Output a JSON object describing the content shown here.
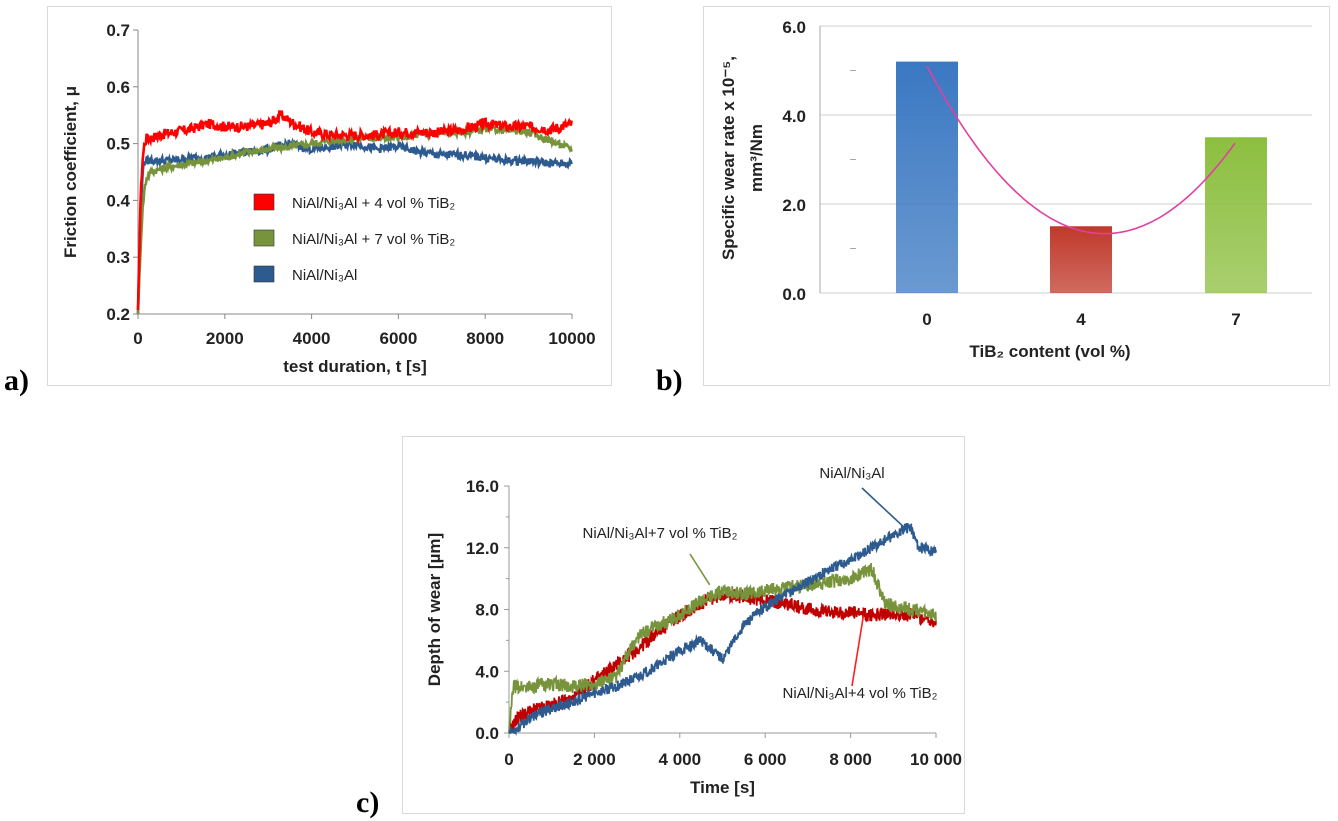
{
  "panel_labels": {
    "a": "a)",
    "b": "b)",
    "c": "c)"
  },
  "chart_data": [
    {
      "type": "line",
      "panel": "a",
      "xlabel": "test duration, t [s]",
      "ylabel": "Friction coefficient, μ",
      "xlim": [
        0,
        10000
      ],
      "ylim": [
        0.2,
        0.7
      ],
      "xticks": [
        "0",
        "2000",
        "4000",
        "6000",
        "8000",
        "10000"
      ],
      "yticks": [
        "0.2",
        "0.3",
        "0.4",
        "0.5",
        "0.6",
        "0.7"
      ],
      "grid": false,
      "legend": "center-right",
      "series": [
        {
          "name": "NiAl/Ni₃Al + 4 vol % TiB₂",
          "color": "#ff0000",
          "x": [
            0,
            50,
            100,
            150,
            200,
            300,
            500,
            800,
            1200,
            1600,
            2000,
            2500,
            3000,
            3300,
            3600,
            4000,
            4500,
            5000,
            5500,
            6000,
            6500,
            7000,
            7500,
            8000,
            8500,
            9000,
            9500,
            10000
          ],
          "y": [
            0.2,
            0.38,
            0.47,
            0.5,
            0.51,
            0.51,
            0.515,
            0.52,
            0.525,
            0.535,
            0.53,
            0.53,
            0.535,
            0.55,
            0.535,
            0.52,
            0.515,
            0.515,
            0.515,
            0.52,
            0.52,
            0.52,
            0.525,
            0.535,
            0.53,
            0.53,
            0.525,
            0.535
          ]
        },
        {
          "name": "NiAl/Ni₃Al + 7 vol % TiB₂",
          "color": "#77933c",
          "x": [
            0,
            50,
            100,
            150,
            200,
            300,
            500,
            800,
            1200,
            1600,
            2000,
            2500,
            3000,
            3500,
            4000,
            4500,
            5000,
            5500,
            6000,
            6500,
            7000,
            7500,
            8000,
            8500,
            9000,
            9500,
            10000
          ],
          "y": [
            0.2,
            0.3,
            0.38,
            0.42,
            0.44,
            0.45,
            0.455,
            0.46,
            0.465,
            0.47,
            0.475,
            0.485,
            0.49,
            0.495,
            0.5,
            0.505,
            0.51,
            0.51,
            0.51,
            0.515,
            0.52,
            0.52,
            0.525,
            0.525,
            0.52,
            0.505,
            0.49
          ]
        },
        {
          "name": "NiAl/Ni₃Al",
          "color": "#2e5b8f",
          "x": [
            0,
            50,
            100,
            150,
            200,
            300,
            500,
            800,
            1200,
            1600,
            2000,
            2500,
            3000,
            3500,
            4000,
            4500,
            5000,
            5500,
            6000,
            6500,
            7000,
            7500,
            8000,
            8500,
            9000,
            9500,
            10000
          ],
          "y": [
            0.2,
            0.35,
            0.45,
            0.47,
            0.47,
            0.47,
            0.47,
            0.47,
            0.475,
            0.475,
            0.48,
            0.485,
            0.49,
            0.5,
            0.49,
            0.495,
            0.5,
            0.49,
            0.495,
            0.485,
            0.48,
            0.48,
            0.475,
            0.47,
            0.47,
            0.465,
            0.465
          ]
        }
      ]
    },
    {
      "type": "bar",
      "panel": "b",
      "xlabel": "TiB₂ content (vol %)",
      "ylabel_line1": "Specific wear rate x 10⁻⁵,",
      "ylabel_line2": "mm³/Nm",
      "categories": [
        "0",
        "4",
        "7"
      ],
      "values": [
        5.2,
        1.5,
        3.5
      ],
      "colors": [
        "#3a78c2",
        "#c0392b",
        "#8cbf3f"
      ],
      "ylim": [
        0,
        6
      ],
      "yticks": [
        "0.0",
        "2.0",
        "4.0",
        "6.0"
      ],
      "grid": true,
      "trendline": {
        "type": "polynomial",
        "color": "#e040a0"
      }
    },
    {
      "type": "line",
      "panel": "c",
      "xlabel": "Time [s]",
      "ylabel": "Depth of wear [µm]",
      "xlim": [
        0,
        10000
      ],
      "ylim": [
        0,
        16
      ],
      "xticks": [
        "0",
        "2 000",
        "4 000",
        "6 000",
        "8 000",
        "10 000"
      ],
      "yticks": [
        "0.0",
        "4.0",
        "8.0",
        "12.0",
        "16.0"
      ],
      "grid": false,
      "series": [
        {
          "name": "NiAl/Ni₃Al",
          "color": "#2e5b8f",
          "x": [
            0,
            200,
            500,
            1000,
            1500,
            2000,
            2500,
            3000,
            3500,
            4000,
            4500,
            5000,
            5500,
            6000,
            6500,
            7000,
            7500,
            8000,
            8500,
            9000,
            9400,
            9600,
            10000
          ],
          "y": [
            0,
            0.3,
            1.0,
            1.6,
            2.0,
            2.6,
            3.0,
            3.6,
            4.4,
            5.3,
            6.0,
            4.8,
            7.0,
            8.2,
            9.0,
            9.8,
            10.6,
            11.2,
            12.0,
            12.8,
            13.4,
            12.0,
            11.8
          ]
        },
        {
          "name": "NiAl/Ni₃Al+7 vol % TiB₂",
          "color": "#77933c",
          "x": [
            0,
            100,
            500,
            1000,
            1500,
            2000,
            2500,
            3000,
            3500,
            4000,
            4500,
            5000,
            5500,
            6000,
            6500,
            7000,
            7500,
            8000,
            8500,
            8800,
            9000,
            9500,
            10000
          ],
          "y": [
            0,
            3.0,
            3.0,
            3.2,
            3.0,
            3.2,
            3.6,
            6.2,
            7.0,
            7.6,
            8.6,
            9.2,
            9.0,
            9.2,
            9.4,
            9.6,
            9.8,
            10.0,
            10.6,
            8.4,
            8.2,
            8.0,
            7.6
          ]
        },
        {
          "name": "NiAl/Ni₃Al+4 vol % TiB₂",
          "color": "#c00000",
          "x": [
            0,
            200,
            500,
            1000,
            1500,
            2000,
            2500,
            3000,
            3500,
            4000,
            4500,
            5000,
            5500,
            6000,
            6500,
            7000,
            7500,
            8000,
            8500,
            9000,
            9500,
            10000
          ],
          "y": [
            0,
            1.0,
            1.4,
            1.8,
            2.2,
            3.4,
            4.4,
            5.4,
            6.6,
            7.6,
            8.4,
            9.0,
            8.8,
            8.6,
            8.4,
            8.0,
            7.8,
            7.8,
            7.6,
            7.8,
            7.6,
            7.2
          ]
        }
      ],
      "annotations": [
        {
          "text": "NiAl/Ni₃Al",
          "series": 0,
          "point": [
            9300,
            13.2
          ]
        },
        {
          "text": "NiAl/Ni₃Al+7 vol % TiB₂",
          "series": 1,
          "point": [
            4700,
            9.6
          ]
        },
        {
          "text": "NiAl/Ni₃Al+4 vol % TiB₂",
          "series": 2,
          "point": [
            8300,
            7.6
          ]
        }
      ]
    }
  ]
}
